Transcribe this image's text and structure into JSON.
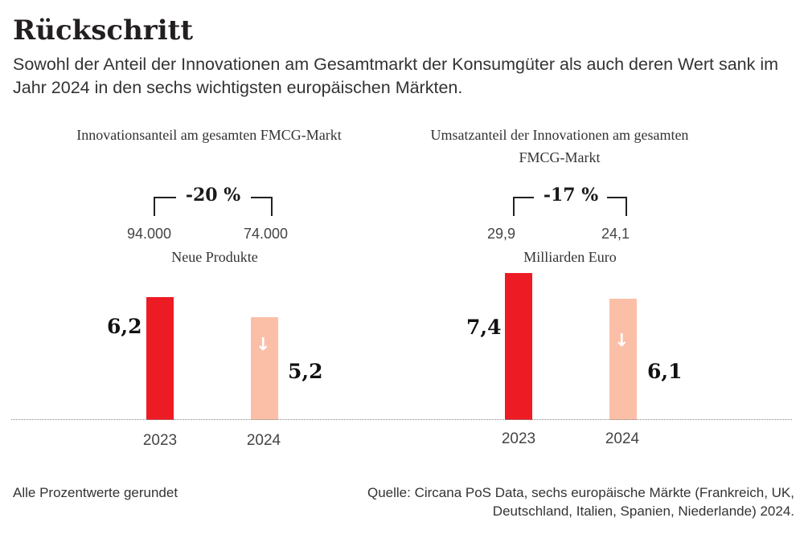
{
  "title": "Rückschritt",
  "subtitle": "Sowohl der Anteil der Innovationen am Gesamtmarkt der Konsumgüter als auch deren Wert sank im Jahr 2024 in den sechs wichtigsten europäischen Märkten.",
  "colors": {
    "bar_2023": "#ed1c24",
    "bar_2024": "#fbbfa8"
  },
  "chart_data": [
    {
      "type": "bar",
      "title": "Innovationsanteil am gesamten FMCG-Markt",
      "change": "-20 %",
      "counts": [
        "94.000",
        "74.000"
      ],
      "counts_label": "Neue Produkte",
      "categories": [
        "2023",
        "2024"
      ],
      "values": [
        6.2,
        5.2
      ],
      "value_labels": [
        "6,2",
        "5,2"
      ],
      "trend_icon": "arrow-down-icon"
    },
    {
      "type": "bar",
      "title": "Umsatzanteil der Innovationen am gesamten FMCG-Markt",
      "change": "-17 %",
      "counts": [
        "29,9",
        "24,1"
      ],
      "counts_label": "Milliarden Euro",
      "categories": [
        "2023",
        "2024"
      ],
      "values": [
        7.4,
        6.1
      ],
      "value_labels": [
        "7,4",
        "6,1"
      ],
      "trend_icon": "arrow-down-icon"
    }
  ],
  "footer": {
    "note": "Alle Prozentwerte gerundet",
    "source": "Quelle: Circana PoS Data, sechs europäische Märkte (Frankreich, UK, Deutschland, Italien, Spanien, Niederlande) 2024."
  }
}
